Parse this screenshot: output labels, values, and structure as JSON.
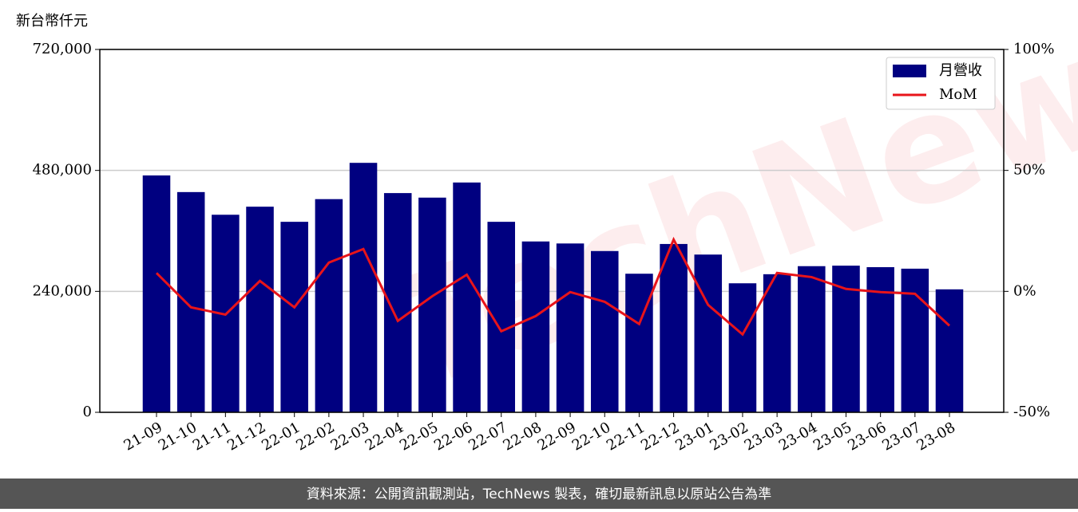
{
  "chart_data": {
    "type": "bar",
    "y_label": "新台幣仟元",
    "watermark": "TechNews",
    "source": "資料來源：公開資訊觀測站，TechNews 製表，確切最新訊息以原站公告為準",
    "categories": [
      "21-09",
      "21-10",
      "21-11",
      "21-12",
      "22-01",
      "22-02",
      "22-03",
      "22-04",
      "22-05",
      "22-06",
      "22-07",
      "22-08",
      "22-09",
      "22-10",
      "22-11",
      "22-12",
      "23-01",
      "23-02",
      "23-03",
      "23-04",
      "23-05",
      "23-06",
      "23-07",
      "23-08"
    ],
    "series": [
      {
        "name": "月營收",
        "color": "#000080",
        "type": "bar",
        "values": [
          470000,
          437000,
          392000,
          408000,
          378000,
          423000,
          495000,
          435000,
          426000,
          456000,
          378000,
          339000,
          335000,
          320000,
          275000,
          334000,
          313000,
          256000,
          274000,
          290000,
          291000,
          288000,
          285000,
          244000
        ]
      },
      {
        "name": "MoM",
        "color": "#e8141a",
        "type": "line",
        "axis": "y2",
        "values": [
          7.6,
          -6.6,
          -9.6,
          4.3,
          -6.6,
          11.9,
          17.5,
          -12.2,
          -2.0,
          6.9,
          -16.5,
          -10.2,
          -0.3,
          -4.3,
          -13.5,
          21.4,
          -5.6,
          -17.8,
          7.6,
          5.9,
          1.0,
          -0.3,
          -1.0,
          -14.2
        ]
      }
    ],
    "ylim": [
      0,
      720000
    ],
    "yticks": [
      0,
      {
        "value": 240000,
        "label": "240,000"
      },
      {
        "value": 480000,
        "label": "480,000"
      },
      {
        "value": 720000,
        "label": "720,000"
      }
    ],
    "y2lim": [
      -50,
      100
    ],
    "y2ticks": [
      {
        "value": -50,
        "label": "-50%"
      },
      {
        "value": 0,
        "label": "0%"
      },
      {
        "value": 50,
        "label": "50%"
      },
      {
        "value": 100,
        "label": "100%"
      }
    ],
    "grid": true,
    "legend": "upper right"
  }
}
